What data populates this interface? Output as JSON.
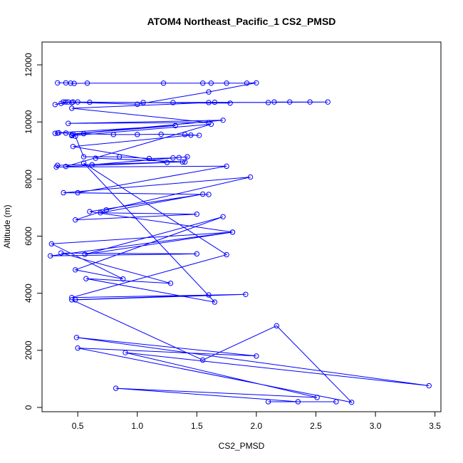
{
  "chart_data": {
    "type": "line",
    "markers": "open-circle",
    "title": "ATOM4 Northeast_Pacific_1 CS2_PMSD",
    "xlabel": "CS2_PMSD",
    "ylabel": "Altitude (m)",
    "xlim": [
      0.2,
      3.55
    ],
    "ylim": [
      -150,
      12800
    ],
    "xticks": [
      0.5,
      1.0,
      1.5,
      2.0,
      2.5,
      3.0,
      3.5
    ],
    "xtick_labels": [
      "0.5",
      "1.0",
      "1.5",
      "2.0",
      "2.5",
      "3.0",
      "3.5"
    ],
    "yticks": [
      0,
      2000,
      4000,
      6000,
      8000,
      10000,
      12000
    ],
    "ytick_labels": [
      "0",
      "2000",
      "4000",
      "6000",
      "8000",
      "10000",
      "12000"
    ],
    "grid": false,
    "legend": "none",
    "color": "#0000FF",
    "series": [
      {
        "x": [
          0.33,
          0.4,
          0.44,
          0.47,
          0.58,
          1.22,
          1.55,
          1.62,
          1.75,
          1.92,
          2.0,
          1.6,
          1.0,
          0.38,
          0.46,
          1.78,
          0.4,
          0.31,
          0.36,
          0.42,
          0.45,
          0.5,
          0.6,
          1.05,
          1.3,
          1.65,
          2.1,
          2.15,
          2.28,
          2.45,
          2.6,
          1.6,
          0.45,
          1.6,
          0.42,
          1.72,
          0.46,
          1.32,
          0.34,
          0.31,
          0.33,
          0.4,
          0.45,
          0.55,
          0.8,
          1.0,
          1.2,
          1.4,
          1.52,
          1.45,
          0.46,
          1.25,
          0.4,
          1.62,
          0.45,
          0.48,
          0.55,
          0.85,
          1.1,
          1.3,
          1.35,
          0.62,
          1.42,
          1.4,
          0.65,
          1.38,
          0.33,
          0.32,
          1.75,
          0.5,
          1.6,
          0.38,
          1.95,
          0.74,
          0.48,
          1.5,
          0.69,
          1.55,
          0.6,
          1.8,
          0.56,
          1.72,
          0.48,
          0.88,
          0.28,
          1.8,
          0.27,
          1.5,
          0.36,
          1.28,
          0.57,
          1.65,
          0.55,
          1.75,
          0.45,
          1.91,
          0.48,
          1.6,
          0.45,
          1.55,
          2.17,
          2.8,
          0.5,
          2.0,
          0.49,
          3.45,
          0.9,
          2.51,
          0.82,
          2.35,
          2.1,
          2.67
        ],
        "y": [
          11370,
          11370,
          11360,
          11350,
          11360,
          11360,
          11360,
          11360,
          11360,
          11360,
          11370,
          11050,
          10620,
          10700,
          10700,
          10660,
          10700,
          10610,
          10650,
          10700,
          10680,
          10700,
          10690,
          10680,
          10680,
          10690,
          10680,
          10700,
          10700,
          10700,
          10700,
          10680,
          10480,
          9980,
          9950,
          10060,
          9580,
          9870,
          9620,
          9600,
          9610,
          9610,
          9550,
          9590,
          9560,
          9560,
          9570,
          9560,
          9530,
          9540,
          9140,
          8580,
          8440,
          9920,
          9520,
          9500,
          8780,
          8780,
          8720,
          8740,
          8750,
          8500,
          8780,
          8600,
          8730,
          8600,
          8480,
          8420,
          8450,
          7520,
          7460,
          7520,
          8070,
          6920,
          6570,
          6770,
          6820,
          7470,
          6860,
          6140,
          5360,
          6680,
          4820,
          4500,
          5730,
          6140,
          5310,
          5380,
          5410,
          4350,
          4510,
          3690,
          8560,
          5350,
          3850,
          3960,
          3770,
          3940,
          3770,
          1660,
          2860,
          180,
          2080,
          1800,
          2450,
          760,
          1920,
          350,
          670,
          200,
          200,
          200
        ]
      }
    ]
  }
}
